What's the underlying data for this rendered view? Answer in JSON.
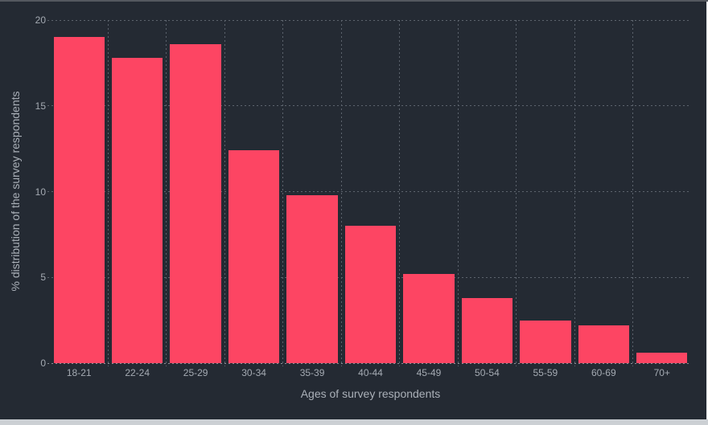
{
  "chart_data": {
    "type": "bar",
    "title": "",
    "xlabel": "Ages of survey respondents",
    "ylabel": "% distribution of the survey respondents",
    "categories": [
      "18-21",
      "22-24",
      "25-29",
      "30-34",
      "35-39",
      "40-44",
      "45-49",
      "50-54",
      "55-59",
      "60-69",
      "70+"
    ],
    "values": [
      19.0,
      17.8,
      18.6,
      12.4,
      9.8,
      8.0,
      5.2,
      3.8,
      2.5,
      2.2,
      0.6
    ],
    "ylim": [
      0,
      20
    ],
    "yticks": [
      0,
      5,
      10,
      15,
      20
    ],
    "grid": true,
    "legend_position": "none",
    "colors": {
      "bar": "#fd4563",
      "background": "#242a33",
      "grid_dots": "#5d646e",
      "tick_text": "#a4aab2",
      "title_text": "#aab0b8",
      "top_border": "#54585f",
      "bottom_scrollbar": "#ccd0d4",
      "right_edge": "#eef0f2"
    }
  }
}
